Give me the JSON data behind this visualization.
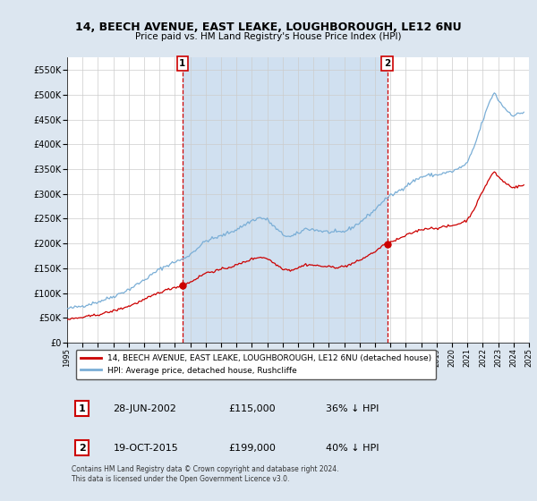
{
  "title_line1": "14, BEECH AVENUE, EAST LEAKE, LOUGHBOROUGH, LE12 6NU",
  "title_line2": "Price paid vs. HM Land Registry's House Price Index (HPI)",
  "background_color": "#dce6f0",
  "plot_bg_color": "#ffffff",
  "shade_color": "#d0e0f0",
  "hpi_color": "#7aaed6",
  "price_color": "#cc0000",
  "ylim": [
    0,
    575000
  ],
  "yticks": [
    0,
    50000,
    100000,
    150000,
    200000,
    250000,
    300000,
    350000,
    400000,
    450000,
    500000,
    550000
  ],
  "ytick_labels": [
    "£0",
    "£50K",
    "£100K",
    "£150K",
    "£200K",
    "£250K",
    "£300K",
    "£350K",
    "£400K",
    "£450K",
    "£500K",
    "£550K"
  ],
  "xlim": [
    1995,
    2025
  ],
  "marker1_date": 2002.49,
  "marker1_price": 115000,
  "marker2_date": 2015.79,
  "marker2_price": 199000,
  "legend_line1": "14, BEECH AVENUE, EAST LEAKE, LOUGHBOROUGH, LE12 6NU (detached house)",
  "legend_line2": "HPI: Average price, detached house, Rushcliffe",
  "table_row1": [
    "1",
    "28-JUN-2002",
    "£115,000",
    "36% ↓ HPI"
  ],
  "table_row2": [
    "2",
    "19-OCT-2015",
    "£199,000",
    "40% ↓ HPI"
  ],
  "footer": "Contains HM Land Registry data © Crown copyright and database right 2024.\nThis data is licensed under the Open Government Licence v3.0."
}
